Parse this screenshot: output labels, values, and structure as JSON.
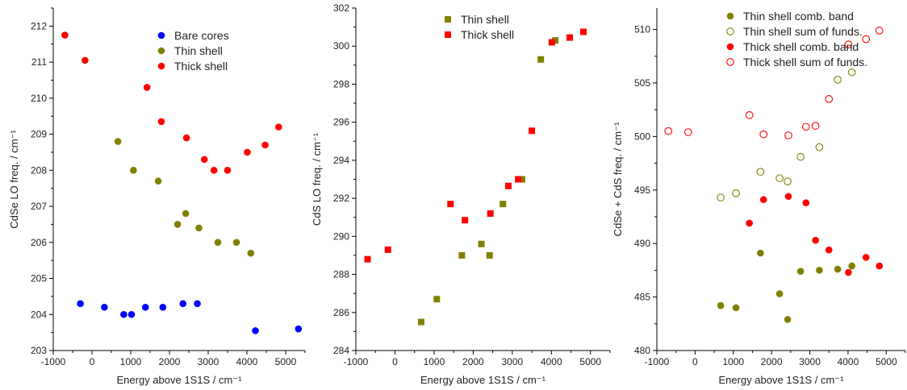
{
  "colors": {
    "blue": "#0000ff",
    "olive": "#808000",
    "red": "#ff0000",
    "axis": "#000000"
  },
  "chart_data": [
    {
      "type": "scatter",
      "xlabel": "Energy above 1S1S / cm⁻¹",
      "ylabel": "CdSe LO freq. / cm⁻¹",
      "xlim": [
        -1000,
        5500
      ],
      "ylim": [
        203,
        212.5
      ],
      "xticks": [
        -1000,
        0,
        1000,
        2000,
        3000,
        4000,
        5000
      ],
      "yticks": [
        203,
        204,
        205,
        206,
        207,
        208,
        209,
        210,
        211,
        212
      ],
      "legend_position": "top-center",
      "series": [
        {
          "name": "Bare cores",
          "marker": "circle",
          "filled": true,
          "color": "#0000ff",
          "x": [
            -300,
            320,
            820,
            1020,
            1380,
            1830,
            2350,
            2720,
            4220,
            5330
          ],
          "y": [
            204.3,
            204.2,
            204.0,
            204.0,
            204.2,
            204.2,
            204.3,
            204.3,
            203.55,
            203.6
          ]
        },
        {
          "name": "Thin shell",
          "marker": "circle",
          "filled": true,
          "color": "#808000",
          "x": [
            670,
            1070,
            1710,
            2210,
            2420,
            2760,
            3250,
            3730,
            4100
          ],
          "y": [
            208.8,
            208.0,
            207.7,
            206.5,
            206.8,
            206.4,
            206.0,
            206.0,
            205.7
          ]
        },
        {
          "name": "Thick shell",
          "marker": "circle",
          "filled": true,
          "color": "#ff0000",
          "x": [
            -700,
            -180,
            1420,
            1790,
            2440,
            2900,
            3150,
            3500,
            4010,
            4470,
            4820
          ],
          "y": [
            211.75,
            211.05,
            210.3,
            209.35,
            208.9,
            208.3,
            208.0,
            208.0,
            208.5,
            208.7,
            209.2
          ]
        }
      ]
    },
    {
      "type": "scatter",
      "xlabel": "Energy above 1S1S / cm⁻¹",
      "ylabel": "CdS LO freq. / cm⁻¹",
      "xlim": [
        -1000,
        5500
      ],
      "ylim": [
        284,
        302
      ],
      "xticks": [
        -1000,
        0,
        1000,
        2000,
        3000,
        4000,
        5000
      ],
      "yticks": [
        284,
        286,
        288,
        290,
        292,
        294,
        296,
        298,
        300,
        302
      ],
      "legend_position": "top-center",
      "series": [
        {
          "name": "Thin shell",
          "marker": "square",
          "filled": true,
          "color": "#808000",
          "x": [
            670,
            1070,
            1710,
            2210,
            2420,
            2760,
            3250,
            3730,
            4100
          ],
          "y": [
            285.5,
            286.7,
            289.0,
            289.6,
            289.0,
            291.7,
            293.0,
            299.3,
            300.3
          ]
        },
        {
          "name": "Thick shell",
          "marker": "square",
          "filled": true,
          "color": "#ff0000",
          "x": [
            -700,
            -180,
            1420,
            1790,
            2440,
            2900,
            3150,
            3500,
            4010,
            4470,
            4820
          ],
          "y": [
            288.8,
            289.3,
            291.7,
            290.85,
            291.2,
            292.65,
            293.0,
            295.55,
            300.2,
            300.45,
            300.75
          ]
        }
      ]
    },
    {
      "type": "scatter",
      "xlabel": "Energy above 1S1S / cm⁻¹",
      "ylabel": "CdSe + CdS freq. / cm⁻¹",
      "xlim": [
        -1000,
        5500
      ],
      "ylim": [
        480,
        512
      ],
      "xticks": [
        -1000,
        0,
        1000,
        2000,
        3000,
        4000,
        5000
      ],
      "yticks": [
        480,
        485,
        490,
        495,
        500,
        505,
        510
      ],
      "legend_position": "top-center",
      "series": [
        {
          "name": "Thin shell comb. band",
          "marker": "circle",
          "filled": true,
          "color": "#808000",
          "x": [
            670,
            1070,
            1710,
            2210,
            2420,
            2760,
            3250,
            3730,
            4100
          ],
          "y": [
            484.2,
            484.0,
            489.1,
            485.3,
            482.9,
            487.4,
            487.5,
            487.6,
            487.9
          ]
        },
        {
          "name": "Thin shell sum of funds.",
          "marker": "circle",
          "filled": false,
          "color": "#808000",
          "x": [
            670,
            1070,
            1710,
            2210,
            2420,
            2760,
            3250,
            3730,
            4100
          ],
          "y": [
            494.3,
            494.7,
            496.7,
            496.1,
            495.8,
            498.1,
            499.0,
            505.3,
            506.0
          ]
        },
        {
          "name": "Thick shell comb. band",
          "marker": "circle",
          "filled": true,
          "color": "#ff0000",
          "x": [
            1420,
            1790,
            2440,
            2900,
            3150,
            3500,
            4010,
            4470,
            4820
          ],
          "y": [
            491.9,
            494.1,
            494.4,
            493.8,
            490.3,
            489.4,
            487.3,
            488.7,
            487.9
          ]
        },
        {
          "name": "Thick shell sum of funds.",
          "marker": "circle",
          "filled": false,
          "color": "#ff0000",
          "x": [
            -700,
            -180,
            1420,
            1790,
            2440,
            2900,
            3150,
            3500,
            4010,
            4470,
            4820
          ],
          "y": [
            500.5,
            500.4,
            502.0,
            500.2,
            500.1,
            500.9,
            501.0,
            503.5,
            508.6,
            509.1,
            509.9
          ]
        }
      ]
    }
  ]
}
